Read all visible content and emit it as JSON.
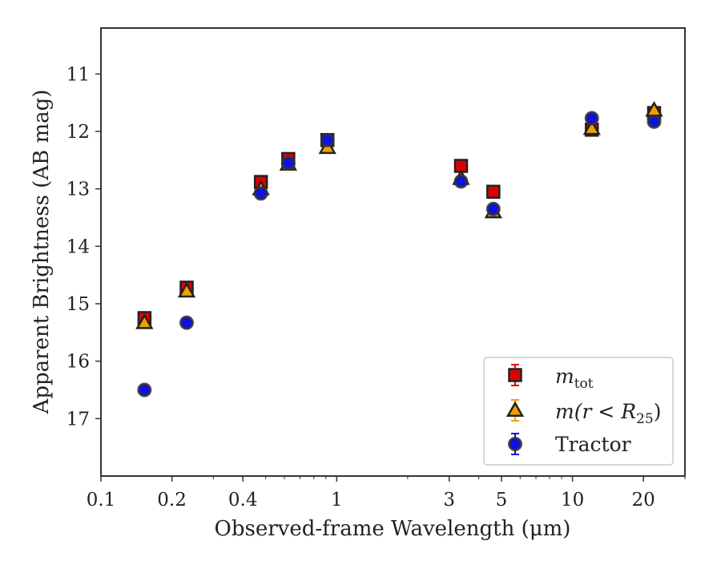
{
  "chart_data": {
    "type": "scatter",
    "xlabel": "Observed-frame Wavelength (μm)",
    "ylabel": "Apparent Brightness (AB mag)",
    "xscale": "log",
    "xlim": [
      0.1,
      30
    ],
    "ylim": [
      18.0,
      10.2
    ],
    "y_inverted": true,
    "grid": false,
    "legend_position": "lower-right",
    "xticks": [
      {
        "value": 0.1,
        "label": "0.1"
      },
      {
        "value": 0.2,
        "label": "0.2"
      },
      {
        "value": 0.4,
        "label": "0.4"
      },
      {
        "value": 1,
        "label": "1"
      },
      {
        "value": 3,
        "label": "3"
      },
      {
        "value": 5,
        "label": "5"
      },
      {
        "value": 10,
        "label": "10"
      },
      {
        "value": 20,
        "label": "20"
      }
    ],
    "yticks": [
      {
        "value": 11,
        "label": "11"
      },
      {
        "value": 12,
        "label": "12"
      },
      {
        "value": 13,
        "label": "13"
      },
      {
        "value": 14,
        "label": "14"
      },
      {
        "value": 15,
        "label": "15"
      },
      {
        "value": 16,
        "label": "16"
      },
      {
        "value": 17,
        "label": "17"
      }
    ],
    "series": [
      {
        "name": "m_tot",
        "legend_main": "m",
        "legend_sub": "tot",
        "marker": "square",
        "color": "#e00000",
        "x": [
          0.153,
          0.231,
          0.477,
          0.6231,
          0.9134,
          3.368,
          4.618,
          12.082,
          22.194
        ],
        "y": [
          15.25,
          14.72,
          12.88,
          12.48,
          12.15,
          12.6,
          13.05,
          11.97,
          11.68
        ]
      },
      {
        "name": "m(r<R_25)",
        "legend_main": "m(r < R",
        "legend_sub": "25",
        "legend_tail": ")",
        "marker": "triangle",
        "color": "#f0a000",
        "x": [
          0.153,
          0.231,
          0.477,
          0.6231,
          0.9134,
          3.368,
          4.618,
          12.082,
          22.194
        ],
        "y": [
          15.33,
          14.78,
          13.0,
          12.57,
          12.28,
          12.82,
          13.4,
          11.95,
          11.63
        ]
      },
      {
        "name": "Tractor",
        "marker": "circle",
        "color": "#1010e0",
        "x": [
          0.153,
          0.231,
          0.477,
          0.6231,
          0.9134,
          3.368,
          4.618,
          12.082,
          22.194
        ],
        "y": [
          16.5,
          15.33,
          13.08,
          12.55,
          12.15,
          12.87,
          13.35,
          11.77,
          11.83
        ]
      }
    ]
  }
}
